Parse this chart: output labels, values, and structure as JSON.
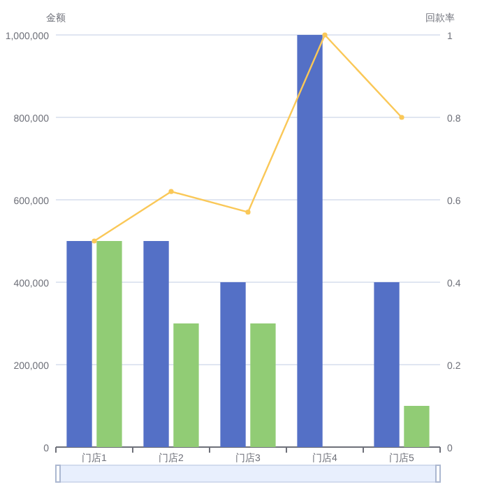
{
  "chart_data": {
    "type": "bar",
    "ylabel": "金额",
    "y2label": "回款率",
    "categories": [
      "门店1",
      "门店2",
      "门店3",
      "门店4",
      "门店5"
    ],
    "series": [
      {
        "color": "#5470c6",
        "values": [
          500000,
          500000,
          400000,
          1000000,
          400000
        ]
      },
      {
        "color": "#91cc75",
        "values": [
          500000,
          300000,
          300000,
          0,
          100000
        ]
      },
      {
        "type": "line",
        "axis": "y2",
        "color": "#fac858",
        "values": [
          0.5,
          0.62,
          0.57,
          1,
          0.8
        ]
      }
    ],
    "ylim": [
      0,
      1000000
    ],
    "yticks": [
      0,
      {
        "value": 200000,
        "label": "200,000"
      },
      {
        "value": 400000,
        "label": "400,000"
      },
      {
        "value": 600000,
        "label": "600,000"
      },
      {
        "value": 800000,
        "label": "800,000"
      },
      {
        "value": 1000000,
        "label": "1,000,000"
      }
    ],
    "y2lim": [
      0,
      1
    ],
    "y2ticks": [
      0,
      0.2,
      0.4,
      0.6,
      0.8,
      1
    ],
    "grid": "y",
    "marker": "circle"
  }
}
